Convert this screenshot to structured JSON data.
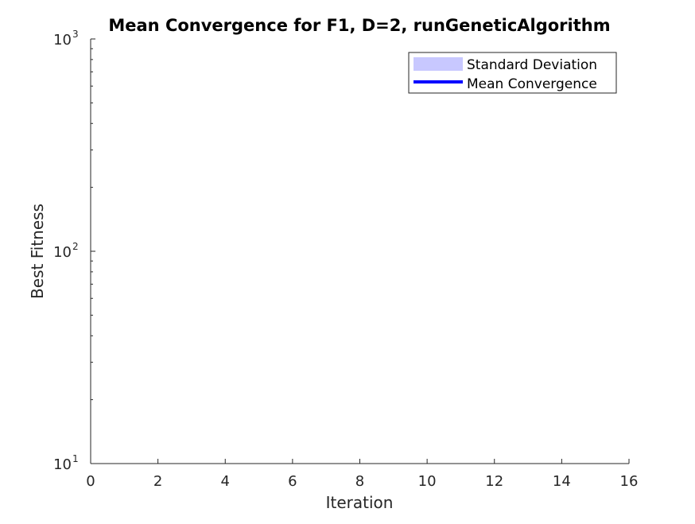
{
  "chart_data": {
    "type": "area",
    "title": "Mean Convergence for F1, D=2, runGeneticAlgorithm",
    "xlabel": "Iteration",
    "ylabel": "Best Fitness",
    "xlim": [
      0,
      16
    ],
    "ylim": [
      10,
      1000
    ],
    "yscale": "log",
    "x_ticks": [
      0,
      2,
      4,
      6,
      8,
      10,
      12,
      14,
      16
    ],
    "x_tick_labels": [
      "0",
      "2",
      "4",
      "6",
      "8",
      "10",
      "12",
      "14",
      "16"
    ],
    "y_ticks": [
      10,
      100,
      1000
    ],
    "y_tick_labels": [
      {
        "base": "10",
        "exp": "1"
      },
      {
        "base": "10",
        "exp": "2"
      },
      {
        "base": "10",
        "exp": "3"
      }
    ],
    "grid": false,
    "legend_position": "top-right",
    "series": [
      {
        "name": "Standard Deviation",
        "kind": "band",
        "color": "#c8c8ff",
        "x": [],
        "lower": [],
        "upper": []
      },
      {
        "name": "Mean Convergence",
        "kind": "line",
        "color": "#0000ff",
        "x": [],
        "values": []
      }
    ]
  }
}
